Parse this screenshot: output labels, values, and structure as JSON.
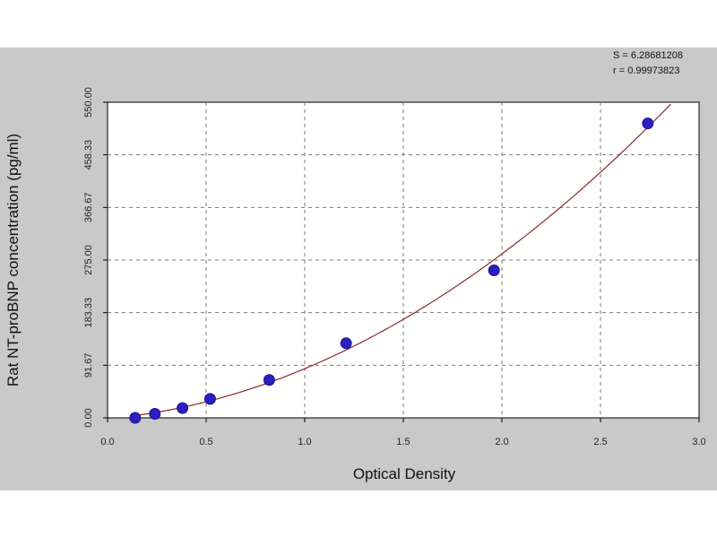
{
  "chart_data": {
    "type": "scatter",
    "title": "",
    "xlabel": "Optical Density",
    "ylabel": "Rat NT-proBNP concentration (pg/ml)",
    "xlim": [
      0,
      3.0
    ],
    "ylim": [
      0,
      550
    ],
    "x_ticks": [
      "0.0",
      "0.5",
      "1.0",
      "1.5",
      "2.0",
      "2.5",
      "3.0"
    ],
    "y_ticks": [
      "0.00",
      "91.67",
      "183.33",
      "275.00",
      "366.67",
      "458.33",
      "550.00"
    ],
    "grid": true,
    "series": [
      {
        "points": [
          {
            "x": 0.14,
            "y": 0
          },
          {
            "x": 0.24,
            "y": 7
          },
          {
            "x": 0.38,
            "y": 17
          },
          {
            "x": 0.52,
            "y": 33
          },
          {
            "x": 0.82,
            "y": 66
          },
          {
            "x": 1.21,
            "y": 130
          },
          {
            "x": 1.96,
            "y": 257
          },
          {
            "x": 2.74,
            "y": 513
          }
        ],
        "color": "#2b1fbf"
      }
    ],
    "fit_curve_color": "#8b2a2a",
    "stats": [
      "S = 6.28681208",
      "r = 0.99973823"
    ]
  }
}
